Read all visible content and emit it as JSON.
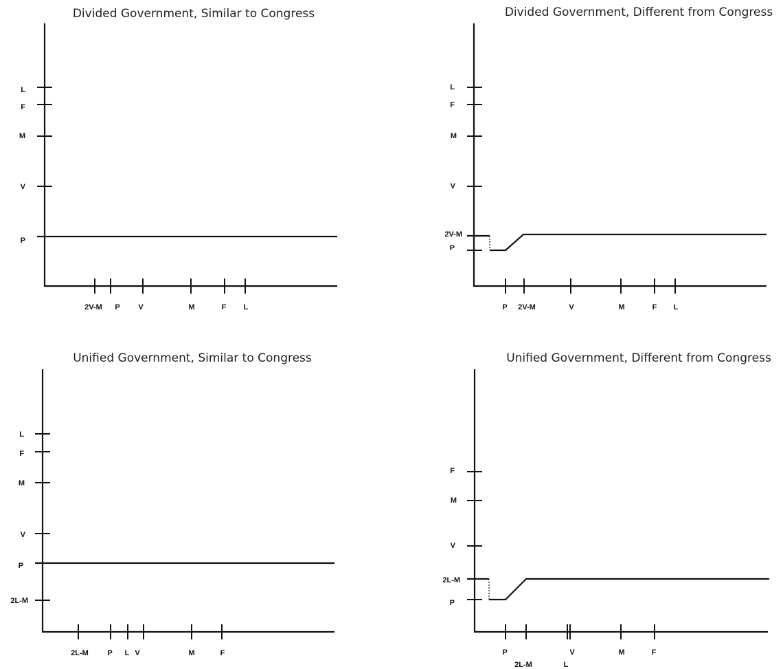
{
  "panels": [
    {
      "id": "divided-similar",
      "title": "Divided Government, Similar to Congress",
      "y_ticks": [
        "L",
        "F",
        "M",
        "V",
        "P"
      ],
      "x_ticks": [
        "2V-M",
        "P",
        "V",
        "M",
        "F",
        "L"
      ],
      "curve": "flat"
    },
    {
      "id": "divided-different",
      "title": "Divided Government, Different from Congress",
      "y_ticks": [
        "L",
        "F",
        "M",
        "V",
        "2V-M",
        "P"
      ],
      "x_ticks": [
        "P",
        "2V-M",
        "V",
        "M",
        "F",
        "L"
      ],
      "curve": "kinked"
    },
    {
      "id": "unified-similar",
      "title": "Unified Government, Similar to Congress",
      "y_ticks": [
        "L",
        "F",
        "M",
        "V",
        "P",
        "2L-M"
      ],
      "x_ticks": [
        "2L-M",
        "P",
        "L",
        "V",
        "M",
        "F"
      ],
      "curve": "flat"
    },
    {
      "id": "unified-different",
      "title": "Unified Government, Different from Congress",
      "y_ticks": [
        "F",
        "M",
        "V",
        "2L-M",
        "P"
      ],
      "x_ticks": [
        "P",
        "2L-M",
        "L",
        "V",
        "M",
        "F"
      ],
      "curve": "kinked"
    }
  ]
}
